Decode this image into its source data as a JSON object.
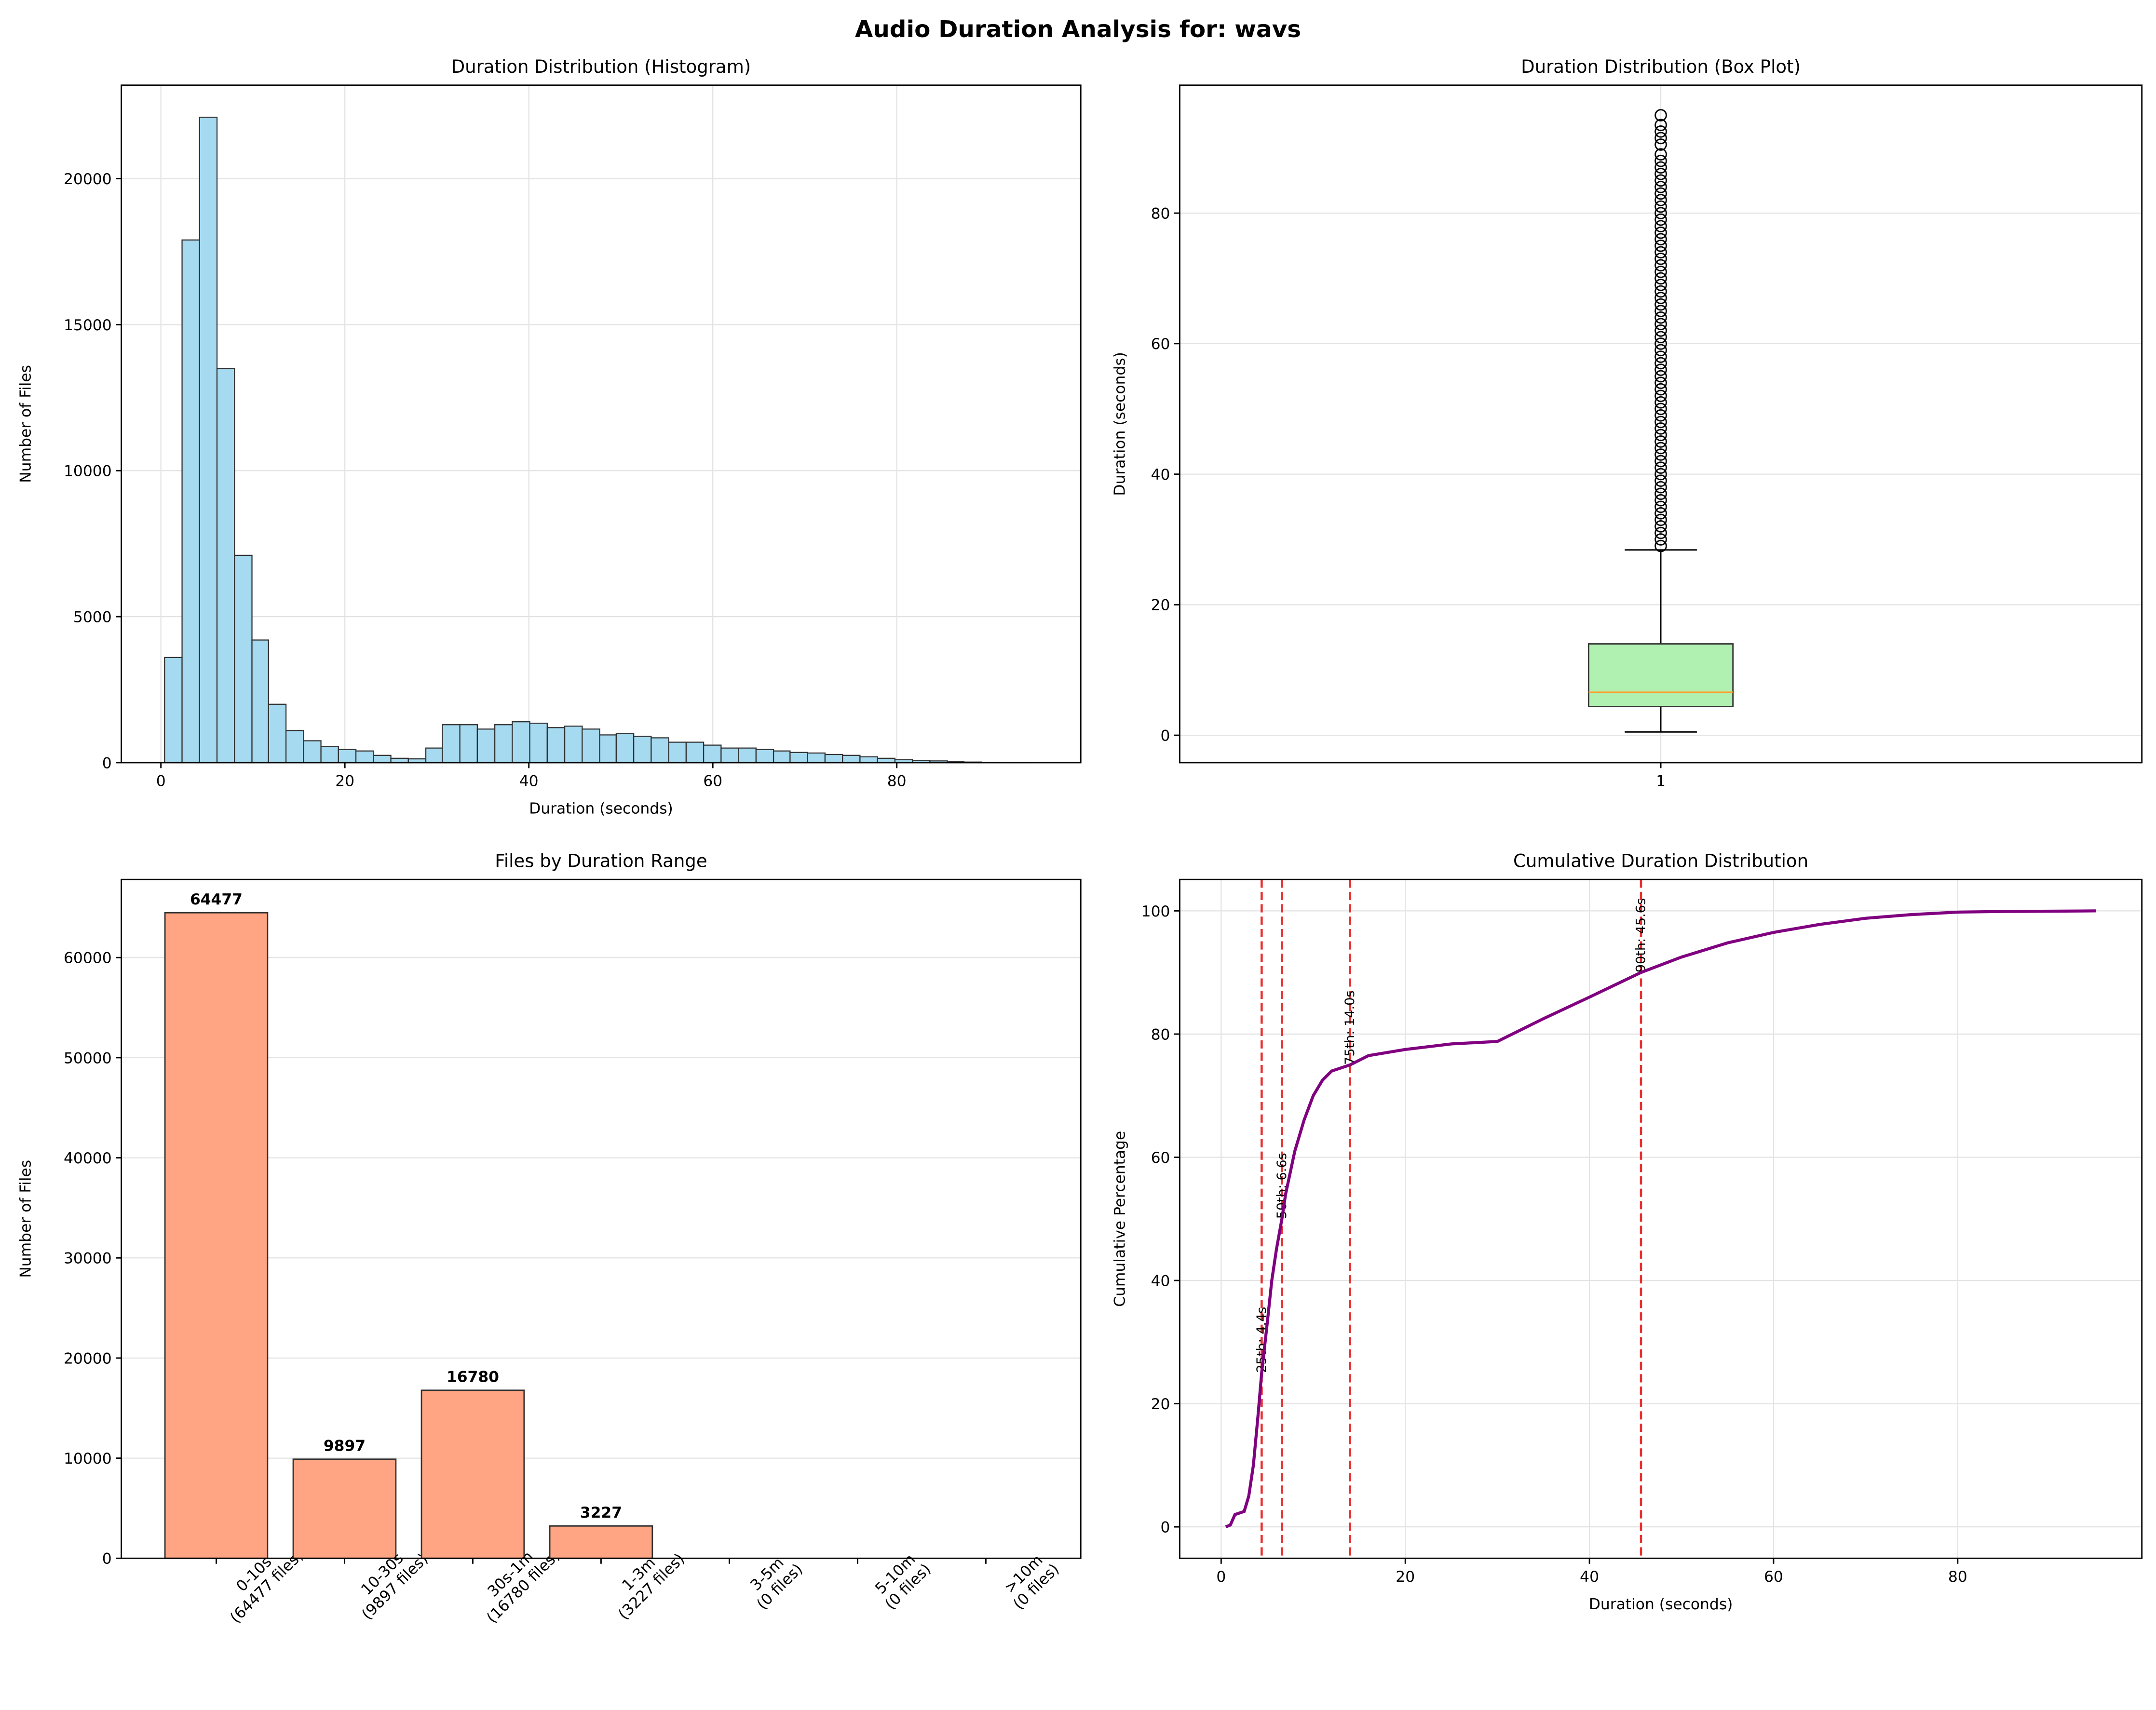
{
  "title": "Audio Duration Analysis for: wavs",
  "chart_data": [
    {
      "type": "histogram",
      "title": "Duration Distribution (Histogram)",
      "x_label": "Duration (seconds)",
      "y_label": "Number of Files",
      "bins": [
        0.4,
        2.3,
        4.2,
        6.1,
        8.0,
        9.9,
        11.7,
        13.6,
        15.5,
        17.4,
        19.3,
        21.2,
        23.1,
        25.0,
        26.9,
        28.8,
        30.6,
        32.5,
        34.4,
        36.3,
        38.2,
        40.1,
        42.0,
        43.9,
        45.8,
        47.7,
        49.5,
        51.4,
        53.3,
        55.2,
        57.1,
        59.0,
        60.9,
        62.8,
        64.7,
        66.6,
        68.4,
        70.3,
        72.2,
        74.1,
        76.0,
        77.9,
        79.8,
        81.7,
        83.6,
        85.5,
        87.3,
        89.2,
        91.1,
        93.0,
        94.9
      ],
      "values": [
        3600,
        17900,
        22100,
        13500,
        7100,
        4200,
        2000,
        1100,
        750,
        550,
        450,
        400,
        250,
        150,
        130,
        500,
        1300,
        1300,
        1150,
        1300,
        1400,
        1350,
        1200,
        1250,
        1150,
        950,
        1000,
        900,
        850,
        700,
        700,
        600,
        500,
        500,
        450,
        400,
        350,
        330,
        280,
        250,
        200,
        150,
        100,
        80,
        60,
        40,
        20,
        10,
        5,
        3
      ],
      "color": "#a6daf0",
      "edgecolor": "#333333",
      "xlim": [
        -4.3,
        100
      ],
      "xticks": [
        0,
        20,
        40,
        60,
        80
      ],
      "ylim": [
        0,
        23200
      ],
      "yticks": [
        0,
        5000,
        10000,
        15000,
        20000
      ],
      "grid": true
    },
    {
      "type": "box",
      "title": "Duration Distribution (Box Plot)",
      "y_label": "Duration (seconds)",
      "categories": [
        "1"
      ],
      "whisker_low": 0.5,
      "q1": 4.4,
      "median": 6.6,
      "q3": 14.0,
      "whisker_high": 28.4,
      "outliers": [
        29,
        30,
        31,
        32,
        33,
        34,
        35,
        36,
        37,
        38,
        39,
        40,
        41,
        42,
        43,
        44,
        45,
        46,
        47,
        48,
        49,
        50,
        51,
        52,
        53,
        54,
        55,
        56,
        57,
        58,
        59,
        60,
        61,
        62,
        63,
        64,
        65,
        66,
        67,
        68,
        69,
        70,
        71,
        72,
        73,
        74,
        75,
        76,
        77,
        78,
        79,
        80,
        81,
        82,
        83,
        84,
        85,
        86,
        87,
        88,
        89,
        90.5,
        91.5,
        92.5,
        93.5,
        95
      ],
      "color": "#b0f0b0",
      "median_color": "#ff9f2f",
      "ylim": [
        -4.2,
        99.6
      ],
      "yticks": [
        0,
        20,
        40,
        60,
        80
      ],
      "grid": true
    },
    {
      "type": "bar",
      "title": "Files by Duration Range",
      "y_label": "Number of Files",
      "categories": [
        "0-10s\n(64477 files)",
        "10-30s\n(9897 files)",
        "30s-1m\n(16780 files)",
        "1-3m\n(3227 files)",
        "3-5m\n(0 files)",
        "5-10m\n(0 files)",
        ">10m\n(0 files)"
      ],
      "values": [
        64477,
        9897,
        16780,
        3227,
        0,
        0,
        0
      ],
      "color": "#ffa583",
      "ylim": [
        0,
        67800
      ],
      "yticks": [
        0,
        10000,
        20000,
        30000,
        40000,
        50000,
        60000
      ],
      "grid": true
    },
    {
      "type": "line",
      "title": "Cumulative Duration Distribution",
      "x_label": "Duration (seconds)",
      "y_label": "Cumulative Percentage",
      "x": [
        0.5,
        1,
        1.5,
        2.5,
        3,
        3.5,
        4,
        4.4,
        5,
        5.5,
        6,
        6.6,
        7,
        8,
        9,
        10,
        11,
        12,
        14,
        16,
        20,
        25,
        30,
        35,
        40,
        45.6,
        50,
        55,
        60,
        65,
        70,
        75,
        80,
        85,
        95
      ],
      "values": [
        0,
        0.3,
        2,
        2.5,
        5,
        10,
        18,
        25,
        33,
        40,
        45,
        50,
        54,
        61,
        66,
        70,
        72.5,
        74,
        75,
        76.5,
        77.5,
        78.4,
        78.8,
        82.5,
        86,
        90,
        92.5,
        94.8,
        96.5,
        97.8,
        98.8,
        99.4,
        99.8,
        99.9,
        100
      ],
      "color": "#800080",
      "percentiles": [
        {
          "value": 4.4,
          "percent": 25,
          "label": "25th: 4.4s"
        },
        {
          "value": 6.6,
          "percent": 50,
          "label": "50th: 6.6s"
        },
        {
          "value": 14.0,
          "percent": 75,
          "label": "75th: 14.0s"
        },
        {
          "value": 45.6,
          "percent": 90,
          "label": "90th: 45.6s"
        }
      ],
      "percentile_color": "#e83030",
      "xlim": [
        -4.5,
        100
      ],
      "xticks": [
        0,
        20,
        40,
        60,
        80
      ],
      "ylim": [
        -5.1,
        105.1
      ],
      "yticks": [
        0,
        20,
        40,
        60,
        80,
        100
      ],
      "grid": true
    }
  ]
}
